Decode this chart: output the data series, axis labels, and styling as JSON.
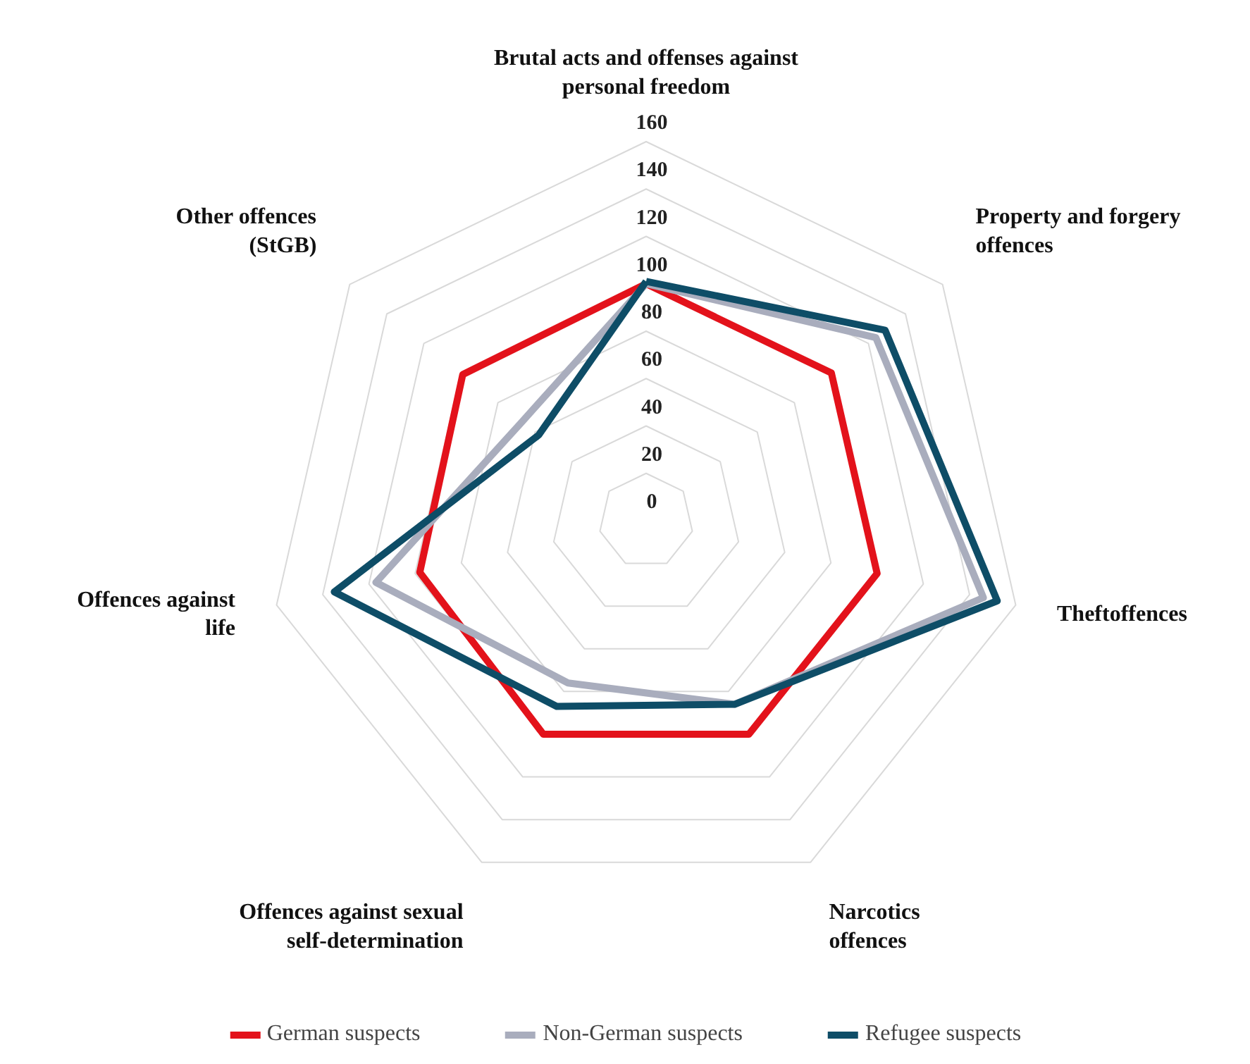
{
  "chart_data": {
    "type": "radar",
    "categories": [
      "Brutal acts and offenses against\npersonal freedom",
      "Property and forgery\noffences",
      "Theftoffences",
      "Narcotics\noffences",
      "Offences against sexual\nself-determination",
      "Offences against\nlife",
      "Other offences\n(StGB)"
    ],
    "series": [
      {
        "name": "German suspects",
        "color": "#e3121b",
        "values": [
          100,
          100,
          100,
          100,
          100,
          98,
          99
        ]
      },
      {
        "name": "Non-German suspects",
        "color": "#a9adbd",
        "values": [
          100,
          124,
          146,
          86,
          76,
          117,
          67
        ]
      },
      {
        "name": "Refugee suspects",
        "color": "#0e4d67",
        "values": [
          101,
          129,
          152,
          86,
          87,
          135,
          58
        ]
      }
    ],
    "ylim": [
      0,
      160
    ],
    "yticks": [
      0,
      20,
      40,
      60,
      80,
      100,
      120,
      140,
      160
    ],
    "grid": true,
    "legend": "bottom"
  }
}
